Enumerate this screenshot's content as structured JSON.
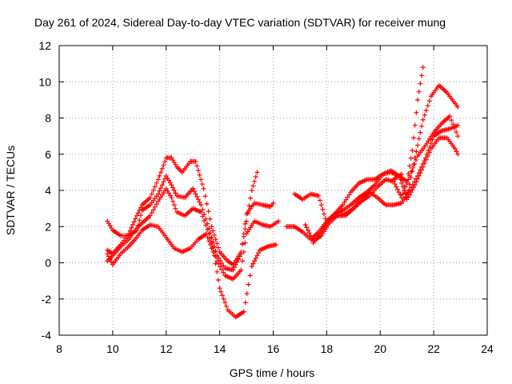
{
  "chart_data": {
    "type": "scatter",
    "title": "Day 261 of 2024, Sidereal Day-to-day VTEC variation (SDTVAR) for receiver mung",
    "xlabel": "GPS time / hours",
    "ylabel": "SDTVAR / TECUs",
    "xlim": [
      8,
      24
    ],
    "ylim": [
      -4,
      12
    ],
    "xticks": [
      8,
      10,
      12,
      14,
      16,
      18,
      20,
      22,
      24
    ],
    "yticks": [
      -4,
      -2,
      0,
      2,
      4,
      6,
      8,
      10,
      12
    ],
    "grid": true,
    "marker": "plus",
    "color": "#ff0000",
    "series": [
      {
        "x": [
          9.8,
          10.0,
          10.3,
          10.6,
          10.9,
          11.1,
          11.4,
          11.7,
          12.0,
          12.2,
          12.4,
          12.6,
          12.9,
          13.1,
          13.4,
          13.7,
          14.0,
          14.3,
          14.5,
          14.8,
          15.0,
          15.2,
          15.4
        ],
        "y": [
          0.7,
          0.5,
          1.0,
          1.6,
          2.6,
          3.2,
          3.6,
          4.6,
          5.8,
          5.8,
          5.3,
          5.0,
          5.6,
          5.6,
          4.1,
          2.0,
          0.6,
          0.1,
          -0.1,
          0.6,
          2.3,
          4.0,
          5.0
        ]
      },
      {
        "x": [
          9.8,
          10.0,
          10.3,
          10.6,
          10.9,
          11.1,
          11.4,
          11.7,
          12.0,
          12.2,
          12.4,
          12.7,
          13.0,
          13.3,
          13.6,
          13.9,
          14.2,
          14.5,
          14.8,
          15.0,
          15.3,
          15.6,
          15.9,
          16.0
        ],
        "y": [
          2.3,
          1.8,
          1.5,
          1.5,
          1.8,
          2.9,
          3.2,
          3.8,
          4.8,
          4.3,
          3.7,
          3.6,
          4.1,
          3.2,
          1.9,
          0.4,
          -0.3,
          -0.4,
          0.5,
          2.7,
          3.3,
          3.2,
          3.1,
          3.3
        ]
      },
      {
        "x": [
          9.8,
          10.0,
          10.3,
          10.6,
          10.9,
          11.1,
          11.4,
          11.7,
          12.0,
          12.2,
          12.4,
          12.7,
          13.0,
          13.3,
          13.6,
          13.9,
          14.2,
          14.5,
          14.8,
          15.0,
          15.3,
          15.6,
          15.9,
          16.2
        ],
        "y": [
          0.1,
          0.4,
          0.9,
          1.3,
          1.9,
          2.2,
          2.6,
          3.4,
          4.1,
          3.6,
          2.8,
          2.6,
          3.0,
          2.8,
          1.6,
          0.1,
          -0.7,
          -0.9,
          -0.4,
          1.6,
          2.3,
          2.1,
          2.0,
          2.3
        ]
      },
      {
        "x": [
          9.8,
          10.0,
          10.3,
          10.6,
          10.9,
          11.1,
          11.4,
          11.7,
          12.0,
          12.3,
          12.6,
          12.9,
          13.2,
          13.5,
          13.8,
          14.0,
          14.3,
          14.6,
          14.9,
          15.2,
          15.5,
          15.8,
          16.1
        ],
        "y": [
          0.5,
          -0.1,
          0.5,
          0.9,
          1.4,
          1.8,
          2.1,
          2.0,
          1.4,
          0.8,
          0.6,
          0.8,
          1.3,
          1.6,
          0.4,
          -1.4,
          -2.6,
          -3.0,
          -2.7,
          -0.2,
          0.7,
          0.9,
          1.0
        ]
      },
      {
        "x": [
          16.5,
          16.8,
          17.1,
          17.4,
          17.7,
          18.0,
          18.3,
          18.6,
          18.9,
          19.2,
          19.5,
          19.8,
          20.1,
          20.4,
          20.7,
          21.0,
          21.2,
          21.4,
          21.6
        ],
        "y": [
          2.0,
          2.0,
          1.7,
          1.3,
          1.7,
          2.3,
          2.7,
          2.9,
          3.2,
          3.6,
          3.9,
          4.3,
          4.9,
          5.0,
          4.8,
          4.5,
          6.2,
          9.0,
          10.8
        ]
      },
      {
        "x": [
          16.8,
          17.1,
          17.4,
          17.7,
          18.0,
          18.3,
          18.6,
          18.9,
          19.2,
          19.5,
          19.8,
          20.1,
          20.4,
          20.7,
          21.0,
          21.3,
          21.6,
          21.9,
          22.2,
          22.5,
          22.8,
          22.9
        ],
        "y": [
          3.8,
          3.5,
          3.8,
          3.7,
          2.2,
          2.7,
          3.2,
          3.9,
          4.4,
          4.6,
          4.6,
          4.9,
          5.1,
          4.8,
          3.6,
          5.8,
          7.9,
          9.2,
          9.8,
          9.4,
          8.8,
          8.6
        ]
      },
      {
        "x": [
          17.2,
          17.5,
          17.8,
          18.1,
          18.4,
          18.7,
          19.0,
          19.3,
          19.6,
          19.9,
          20.2,
          20.5,
          20.8,
          21.1,
          21.4,
          21.7,
          22.0,
          22.3,
          22.6,
          22.9
        ],
        "y": [
          2.1,
          1.2,
          1.5,
          2.2,
          2.6,
          2.7,
          3.0,
          3.4,
          3.7,
          4.2,
          4.6,
          4.5,
          3.6,
          4.8,
          5.9,
          6.5,
          7.2,
          7.7,
          8.1,
          7.0
        ]
      },
      {
        "x": [
          17.5,
          17.8,
          18.1,
          18.4,
          18.7,
          19.0,
          19.3,
          19.6,
          19.9,
          20.2,
          20.5,
          20.8,
          21.1,
          21.4,
          21.7,
          22.0,
          22.3,
          22.6,
          22.9
        ],
        "y": [
          1.1,
          1.7,
          2.4,
          2.6,
          2.6,
          3.0,
          3.6,
          3.9,
          3.6,
          3.2,
          3.2,
          3.3,
          4.0,
          4.8,
          5.8,
          7.0,
          7.3,
          7.4,
          7.6
        ]
      },
      {
        "x": [
          20.5,
          20.8,
          21.0,
          21.3,
          21.6,
          21.9,
          22.2,
          22.5,
          22.8,
          22.9
        ],
        "y": [
          4.6,
          4.9,
          3.5,
          4.3,
          5.3,
          6.3,
          6.9,
          6.9,
          6.3,
          6.0
        ]
      }
    ]
  }
}
